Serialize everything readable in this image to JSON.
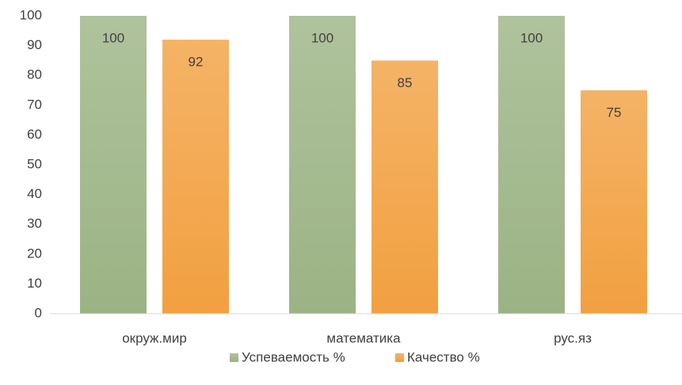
{
  "chart_data": {
    "type": "bar",
    "categories": [
      "окруж.мир",
      "математика",
      "рус.яз"
    ],
    "series": [
      {
        "name": "Успеваемость %",
        "color": "#9bb384",
        "values": [
          100,
          100,
          100
        ]
      },
      {
        "name": "Качество %",
        "color": "#f2a040",
        "values": [
          92,
          85,
          75
        ]
      }
    ],
    "ylim": [
      0,
      100
    ],
    "yticks": [
      0,
      10,
      20,
      30,
      40,
      50,
      60,
      70,
      80,
      90,
      100
    ],
    "grid": false,
    "legend": "bottom",
    "data_labels": true
  }
}
